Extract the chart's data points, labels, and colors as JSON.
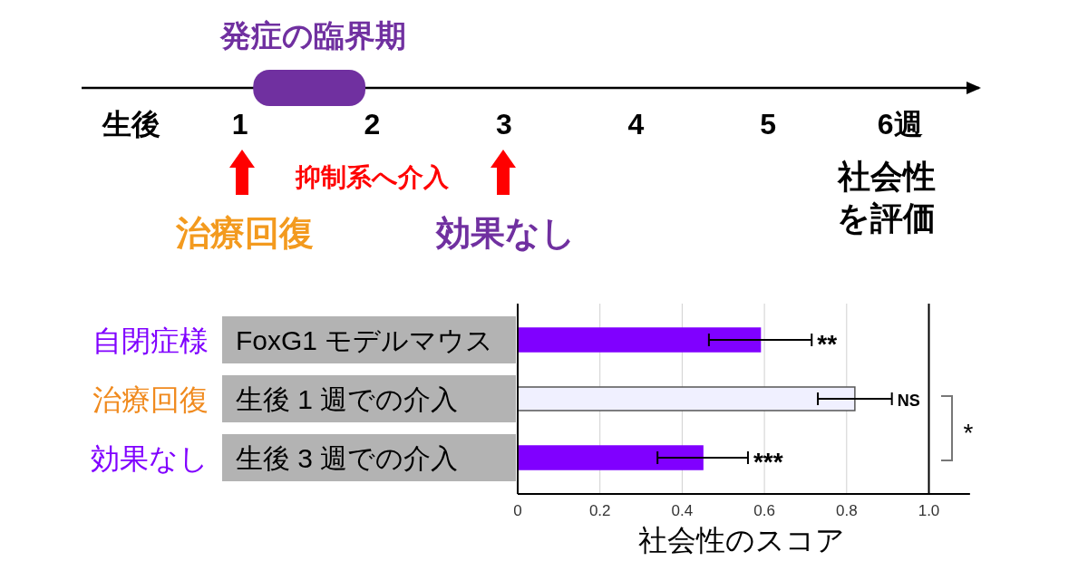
{
  "chart_data": [
    {
      "type": "bar",
      "orientation": "horizontal",
      "categories": [
        null
      ],
      "base": [
        1.1
      ],
      "values": [
        0.85
      ],
      "colors": [
        "#7030a0"
      ],
      "xlim": [
        -0.2,
        6.6
      ],
      "xticks": [
        1,
        2,
        3,
        4,
        5,
        {
          "value": 6,
          "label": "6週"
        }
      ],
      "annotations": [
        "発症の臨界期",
        "生後",
        "抑制系へ介入",
        "治療回復",
        "効果なし",
        "社会性を評価"
      ]
    },
    {
      "type": "bar",
      "orientation": "horizontal",
      "categories": [
        "FoxG1 モデルマウス",
        "生後 1 週での介入",
        "生後 3 週での介入"
      ],
      "values": [
        0.59,
        0.82,
        0.45
      ],
      "colors": [
        "#8000ff",
        "#f0f0ff",
        "#8000ff"
      ],
      "errors": [
        0.125,
        0.09,
        0.11
      ],
      "value_labels": [
        "**",
        "NS",
        "***"
      ],
      "xlim": [
        0,
        1.1
      ],
      "xticks": [
        0,
        0.2,
        0.4,
        0.6,
        0.8,
        {
          "value": 1,
          "label": "1.0"
        }
      ],
      "xlabel": "社会性のスコア",
      "grid": "x",
      "ref_lines": [
        {
          "axis": "x",
          "value": 1,
          "color": "#000000"
        }
      ],
      "annotations": [
        "自閉症様",
        "治療回復",
        "効果なし",
        "*"
      ]
    }
  ]
}
